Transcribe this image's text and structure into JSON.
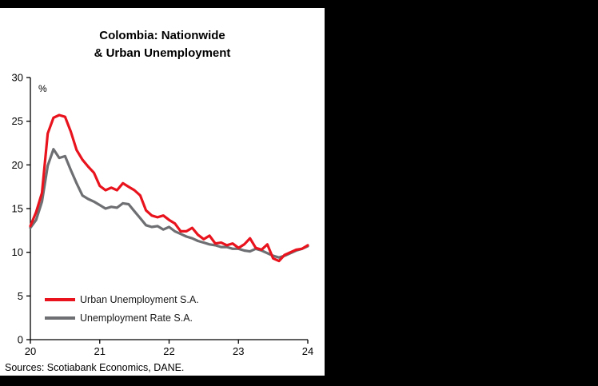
{
  "panel": {
    "title_line1": "Colombia: Nationwide",
    "title_line2": "& Urban Unemployment",
    "source": "Sources: Scotiabank Economics, DANE."
  },
  "colors": {
    "background": "#000000",
    "panel": "#ffffff",
    "axis": "#000000",
    "urban_red": "#e8131d",
    "national_gray": "#6e6f72"
  },
  "chart_data": {
    "type": "line",
    "title": "Colombia: Nationwide & Urban Unemployment",
    "unit_label": "%",
    "xlabel": "",
    "ylabel": "%",
    "xlim": [
      20,
      24
    ],
    "ylim": [
      0,
      30
    ],
    "grid": false,
    "legend_position": "inside-bottom-left",
    "x_ticks": [
      "20",
      "21",
      "22",
      "23",
      "24"
    ],
    "y_ticks": [
      0,
      5,
      10,
      15,
      20,
      25,
      30
    ],
    "x_frequency": "monthly",
    "series": [
      {
        "name": "Urban Unemployment S.A.",
        "color": "#e8131d",
        "values": [
          13.0,
          14.6,
          16.8,
          23.6,
          25.4,
          25.7,
          25.5,
          23.8,
          21.7,
          20.6,
          19.8,
          19.1,
          17.6,
          17.1,
          17.4,
          17.1,
          17.9,
          17.5,
          17.1,
          16.5,
          14.8,
          14.2,
          14.0,
          14.2,
          13.7,
          13.3,
          12.4,
          12.4,
          12.8,
          12.0,
          11.5,
          11.9,
          11.0,
          11.1,
          10.8,
          11.0,
          10.5,
          10.9,
          11.6,
          10.5,
          10.3,
          10.9,
          9.3,
          9.0,
          9.7,
          10.0,
          10.3,
          10.4,
          10.8
        ]
      },
      {
        "name": "Unemployment Rate S.A.",
        "color": "#6e6f72",
        "values": [
          12.8,
          13.7,
          15.8,
          19.9,
          21.8,
          20.8,
          21.0,
          19.4,
          17.9,
          16.5,
          16.1,
          15.8,
          15.4,
          15.0,
          15.2,
          15.1,
          15.6,
          15.5,
          14.7,
          13.9,
          13.1,
          12.9,
          13.0,
          12.6,
          12.9,
          12.4,
          12.1,
          11.8,
          11.6,
          11.3,
          11.1,
          10.9,
          10.8,
          10.6,
          10.6,
          10.4,
          10.4,
          10.2,
          10.1,
          10.4,
          10.2,
          9.9,
          9.6,
          9.4,
          9.6,
          9.9,
          10.2,
          10.4,
          10.7
        ]
      }
    ]
  }
}
